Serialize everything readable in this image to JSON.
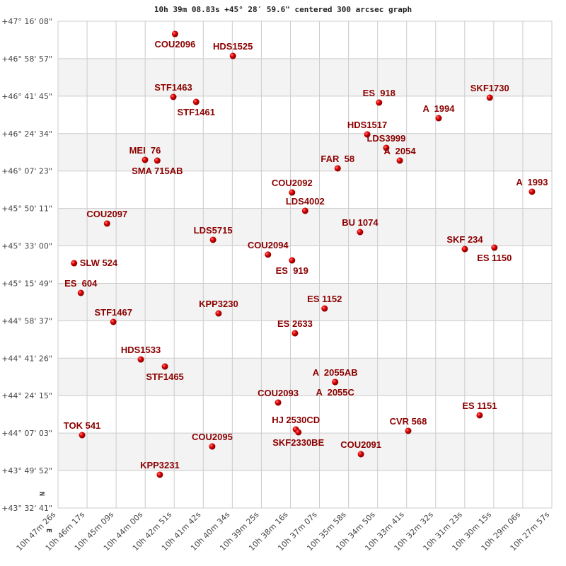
{
  "chart_data": {
    "type": "scatter",
    "title": "10h 39m 08.83s +45° 28′ 59.6\" centered 300 arcsec graph",
    "xlim": [
      "10h 47m 26s",
      "10h 27m 57s"
    ],
    "ylim": [
      "+43° 32' 41\"",
      "+47° 16' 08\""
    ],
    "x_reversed": true,
    "grid": true,
    "x_ticks": [
      "10h 47m 26s",
      "10h 46m 17s",
      "10h 45m 09s",
      "10h 44m 00s",
      "10h 42m 51s",
      "10h 41m 42s",
      "10h 40m 34s",
      "10h 39m 25s",
      "10h 38m 16s",
      "10h 37m 07s",
      "10h 35m 58s",
      "10h 34m 50s",
      "10h 33m 41s",
      "10h 32m 32s",
      "10h 31m 23s",
      "10h 30m 15s",
      "10h 29m 06s",
      "10h 27m 57s"
    ],
    "y_ticks": [
      "+47° 16' 08\"",
      "+46° 58' 57\"",
      "+46° 41' 45\"",
      "+46° 24' 34\"",
      "+46° 07' 23\"",
      "+45° 50' 11\"",
      "+45° 33' 00\"",
      "+45° 15' 49\"",
      "+44° 58' 37\"",
      "+44° 41' 26\"",
      "+44° 24' 15\"",
      "+44° 07' 03\"",
      "+43° 49' 52\"",
      "+43° 32' 41\""
    ],
    "compass": {
      "north": "N",
      "east": "E"
    },
    "colors": {
      "point": "#dd0000",
      "label": "#8b0000",
      "band": "#f3f3f3",
      "grid": "#cccccc"
    },
    "points": [
      {
        "label": "COU2096",
        "ra": "10h 42m 49s",
        "dec": "+47° 10' 17\""
      },
      {
        "label": "HDS1525",
        "ra": "10h 40m 32s",
        "dec": "+47° 00' 13\""
      },
      {
        "label": "STF1463",
        "ra": "10h 42m 53s",
        "dec": "+46° 41' 23\""
      },
      {
        "label": "STF1461",
        "ra": "10h 41m 59s",
        "dec": "+46° 39' 06\""
      },
      {
        "label": "MEI  76",
        "ra": "10h 44m 00s",
        "dec": "+46° 12' 29\""
      },
      {
        "label": "SMA 715AB",
        "ra": "10h 43m 31s",
        "dec": "+46° 12' 09\""
      },
      {
        "label": "ES  918",
        "ra": "10h 34m 46s",
        "dec": "+46° 38' 47\""
      },
      {
        "label": "SKF1730",
        "ra": "10h 30m 24s",
        "dec": "+46° 41' 03\""
      },
      {
        "label": "A  1994",
        "ra": "10h 32m 25s",
        "dec": "+46° 31' 38\""
      },
      {
        "label": "HDS1517",
        "ra": "10h 35m 14s",
        "dec": "+46° 24' 10\""
      },
      {
        "label": "LDS3999",
        "ra": "10h 34m 29s",
        "dec": "+46° 18' 00\""
      },
      {
        "label": "A  2054",
        "ra": "10h 33m 57s",
        "dec": "+46° 12' 09\""
      },
      {
        "label": "FAR  58",
        "ra": "10h 36m 24s",
        "dec": "+46° 08' 35\""
      },
      {
        "label": "COU2092",
        "ra": "10h 38m 12s",
        "dec": "+45° 57' 32\""
      },
      {
        "label": "A  1993",
        "ra": "10h 28m 44s",
        "dec": "+45° 57' 52\""
      },
      {
        "label": "LDS4002",
        "ra": "10h 37m 41s",
        "dec": "+45° 49' 06\""
      },
      {
        "label": "BU 1074",
        "ra": "10h 35m 31s",
        "dec": "+45° 39' 21\""
      },
      {
        "label": "COU2097",
        "ra": "10h 45m 30s",
        "dec": "+45° 43' 15\""
      },
      {
        "label": "LDS5715",
        "ra": "10h 41m 19s",
        "dec": "+45° 35' 47\""
      },
      {
        "label": "COU2094",
        "ra": "10h 39m 09s",
        "dec": "+45° 29' 00\""
      },
      {
        "label": "ES  919",
        "ra": "10h 38m 12s",
        "dec": "+45° 26' 21\""
      },
      {
        "label": "SKF 234",
        "ra": "10h 31m 23s",
        "dec": "+45° 31' 33\""
      },
      {
        "label": "ES 1150",
        "ra": "10h 30m 13s",
        "dec": "+45° 32' 12\""
      },
      {
        "label": "SLW 524",
        "ra": "10h 46m 48s",
        "dec": "+45° 25' 03\""
      },
      {
        "label": "ES  604",
        "ra": "10h 46m 32s",
        "dec": "+45° 11' 25\""
      },
      {
        "label": "STF1467",
        "ra": "10h 45m 15s",
        "dec": "+44° 58' 06\""
      },
      {
        "label": "KPP3230",
        "ra": "10h 41m 06s",
        "dec": "+45° 02' 00\""
      },
      {
        "label": "ES 1152",
        "ra": "10h 36m 55s",
        "dec": "+45° 04' 16\""
      },
      {
        "label": "ES 2633",
        "ra": "10h 38m 05s",
        "dec": "+44° 52' 54\""
      },
      {
        "label": "HDS1533",
        "ra": "10h 44m 10s",
        "dec": "+44° 40' 53\""
      },
      {
        "label": "STF1465",
        "ra": "10h 43m 13s",
        "dec": "+44° 37' 38\""
      },
      {
        "label": "A  2055AB",
        "ra": "10h 36m 30s",
        "dec": "+44° 30' 30\""
      },
      {
        "label": "A  2055C",
        "ra": "10h 36m 30s",
        "dec": "+44° 30' 30\""
      },
      {
        "label": "COU2093",
        "ra": "10h 38m 45s",
        "dec": "+44° 21' 05\""
      },
      {
        "label": "HJ 2530CD",
        "ra": "10h 38m 03s",
        "dec": "+44° 08' 44\""
      },
      {
        "label": "SKF2330BE",
        "ra": "10h 37m 57s",
        "dec": "+44° 07' 26\""
      },
      {
        "label": "TOK 541",
        "ra": "10h 46m 29s",
        "dec": "+44° 06' 08\""
      },
      {
        "label": "COU2095",
        "ra": "10h 41m 21s",
        "dec": "+44° 00' 56\""
      },
      {
        "label": "KPP3231",
        "ra": "10h 43m 25s",
        "dec": "+43° 47' 57\""
      },
      {
        "label": "COU2091",
        "ra": "10h 35m 29s",
        "dec": "+43° 57' 22\""
      },
      {
        "label": "CVR 568",
        "ra": "10h 33m 37s",
        "dec": "+44° 08' 05\""
      },
      {
        "label": "ES 1151",
        "ra": "10h 30m 48s",
        "dec": "+44° 15' 14\""
      }
    ]
  }
}
